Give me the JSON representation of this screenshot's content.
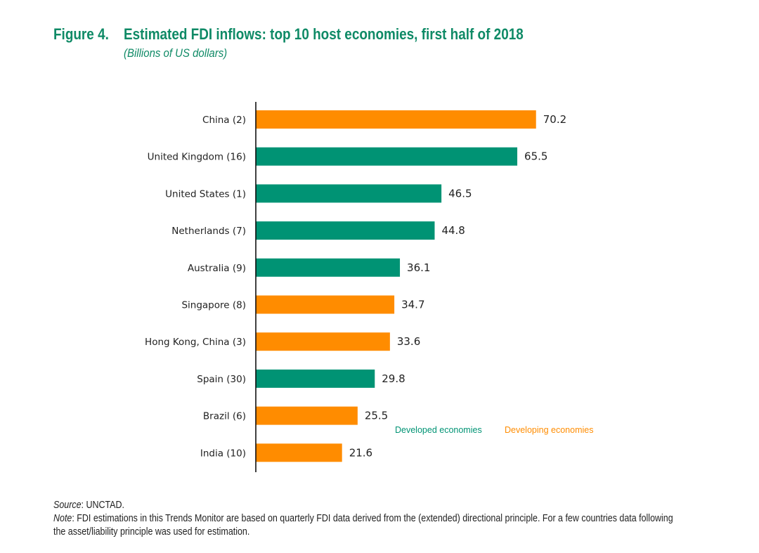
{
  "figure": {
    "number": "Figure 4.",
    "title": "Estimated FDI inflows: top 10 host economies, first half of 2018",
    "subtitle": "(Billions of US dollars)"
  },
  "colors": {
    "developed": "#009374",
    "developing": "#ff8c00",
    "title": "#0f8a66"
  },
  "chart_data": {
    "type": "bar",
    "orientation": "horizontal",
    "title": "Estimated FDI inflows: top 10 host economies, first half of 2018",
    "subtitle": "(Billions of US dollars)",
    "xlabel": "",
    "ylabel": "",
    "xlim": [
      0,
      75
    ],
    "grid": false,
    "categories": [
      "China (2)",
      "United Kingdom (16)",
      "United States (1)",
      "Netherlands (7)",
      "Australia (9)",
      "Singapore (8)",
      "Hong Kong, China (3)",
      "Spain (30)",
      "Brazil (6)",
      "India (10)"
    ],
    "values": [
      70.2,
      65.5,
      46.5,
      44.8,
      36.1,
      34.7,
      33.6,
      29.8,
      25.5,
      21.6
    ],
    "value_labels": [
      "70.2",
      "65.5",
      "46.5",
      "44.8",
      "36.1",
      "34.7",
      "33.6",
      "29.8",
      "25.5",
      "21.6"
    ],
    "groups": [
      "Developing economies",
      "Developed economies",
      "Developed economies",
      "Developed economies",
      "Developed economies",
      "Developing economies",
      "Developing economies",
      "Developed economies",
      "Developing economies",
      "Developing economies"
    ],
    "legend": {
      "placement": "bottom-right",
      "entries": [
        {
          "label": "Developed economies",
          "color": "#009374"
        },
        {
          "label": "Developing economies",
          "color": "#ff8c00"
        }
      ]
    }
  },
  "footer": {
    "source_label": "Source",
    "source_text": ": UNCTAD.",
    "note_label": "Note",
    "note_text": ": FDI estimations in this Trends Monitor are based on quarterly FDI data derived from the (extended) directional principle. For a few countries data following",
    "note_text_2": "the asset/liability principle was used for estimation."
  }
}
